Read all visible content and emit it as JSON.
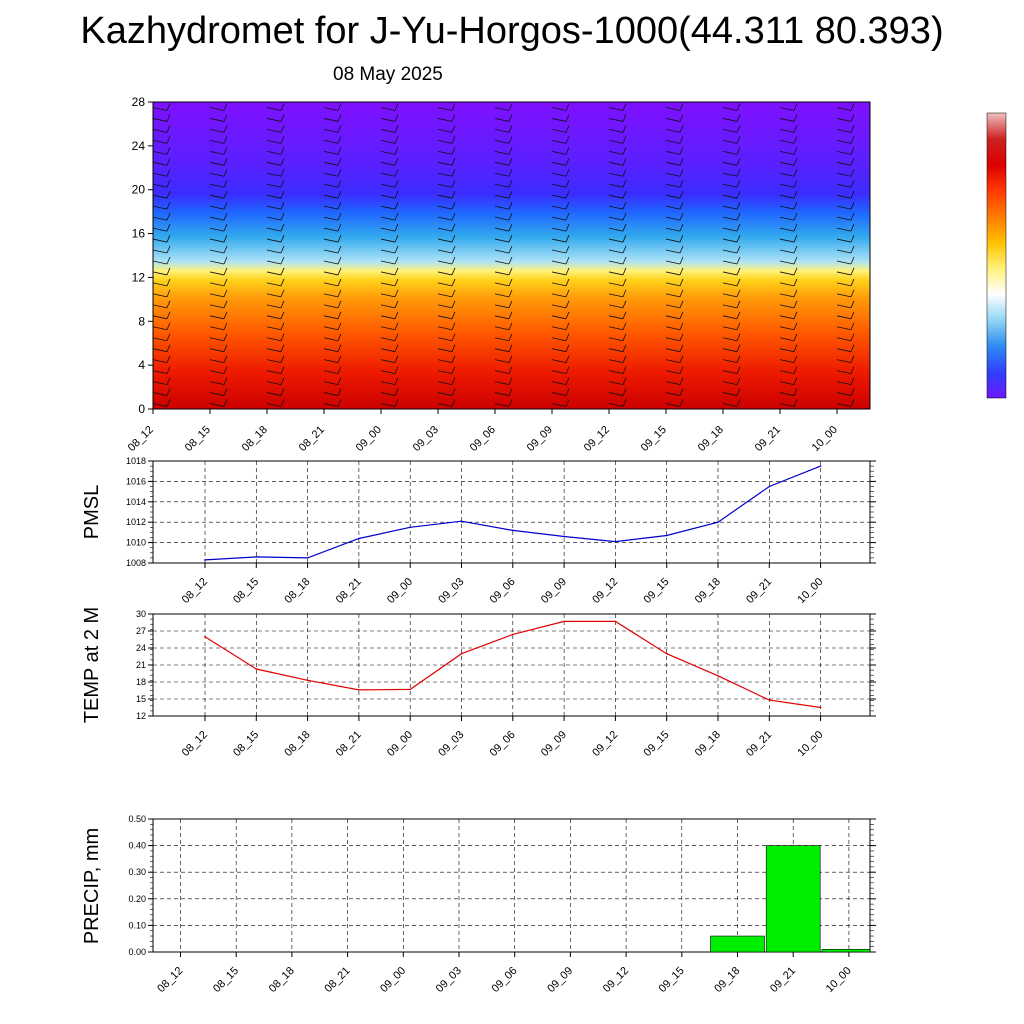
{
  "header": {
    "title": "Kazhydromet for J-Yu-Horgos-1000(44.311 80.393)",
    "date": "08 May 2025"
  },
  "colors": {
    "pmsl_line": "#0000cc",
    "temp_line": "#e00000",
    "precip_bar": "#00ee00",
    "grid": "#000000"
  },
  "chart_data": [
    {
      "type": "heatmap",
      "title": "",
      "x": [
        "08_12",
        "08_15",
        "08_18",
        "08_21",
        "09_00",
        "09_03",
        "09_06",
        "09_09",
        "09_12",
        "09_15",
        "09_18",
        "09_21",
        "10_00"
      ],
      "yticks": [
        0,
        4,
        8,
        12,
        16,
        20,
        24,
        28
      ],
      "ylim": [
        0,
        28
      ],
      "colormap": [
        "#7f10ff",
        "#3a2dff",
        "#1f66ff",
        "#33aaee",
        "#aee3f7",
        "#fff27a",
        "#ffd21a",
        "#ff9a0a",
        "#ff5a00",
        "#ee1a00",
        "#cc0000"
      ],
      "colorbar_stops": [
        "#6a1aff",
        "#3040ff",
        "#2e8cf0",
        "#8fd5f5",
        "#ffffff",
        "#fff27a",
        "#ffc100",
        "#ff7b00",
        "#ff3a00",
        "#dd0000",
        "#cc2222",
        "#f0c0c0"
      ],
      "features": "wind barbs overlaid at each time column; small circle markers near the surface"
    },
    {
      "type": "line",
      "ylabel": "PMSL",
      "x": [
        "08_12",
        "08_15",
        "08_18",
        "08_21",
        "09_00",
        "09_03",
        "09_06",
        "09_09",
        "09_12",
        "09_15",
        "09_18",
        "09_21",
        "10_00"
      ],
      "values": [
        1008.3,
        1008.6,
        1008.5,
        1010.4,
        1011.5,
        1012.1,
        1011.2,
        1010.6,
        1010.1,
        1010.7,
        1012.0,
        1015.5,
        1017.5
      ],
      "ylim": [
        1008,
        1018
      ],
      "yticks": [
        1008,
        1010,
        1012,
        1014,
        1016,
        1018
      ],
      "grid": true
    },
    {
      "type": "line",
      "ylabel": "TEMP at 2 M",
      "x": [
        "08_12",
        "08_15",
        "08_18",
        "08_21",
        "09_00",
        "09_03",
        "09_06",
        "09_09",
        "09_12",
        "09_15",
        "09_18",
        "09_21",
        "10_00"
      ],
      "values": [
        26.0,
        20.3,
        18.3,
        16.6,
        16.7,
        23.0,
        26.4,
        28.7,
        28.7,
        23.0,
        19.1,
        14.8,
        13.5
      ],
      "ylim": [
        12,
        30
      ],
      "yticks": [
        12,
        15,
        18,
        21,
        24,
        27,
        30
      ],
      "grid": true
    },
    {
      "type": "bar",
      "ylabel": "PRECIP, mm",
      "categories": [
        "08_12",
        "08_15",
        "08_18",
        "08_21",
        "09_00",
        "09_03",
        "09_06",
        "09_09",
        "09_12",
        "09_15",
        "09_18",
        "09_21",
        "10_00"
      ],
      "values": [
        0,
        0,
        0,
        0,
        0,
        0,
        0,
        0,
        0,
        0,
        0.06,
        0.4,
        0.01
      ],
      "ylim": [
        0,
        0.5
      ],
      "yticks": [
        "0.00",
        "0.10",
        "0.20",
        "0.30",
        "0.40",
        "0.50"
      ],
      "grid": true
    }
  ]
}
